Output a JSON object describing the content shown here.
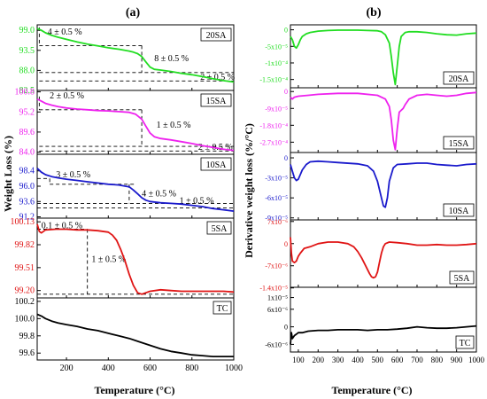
{
  "panels": [
    {
      "id": "a",
      "label": "(a)"
    },
    {
      "id": "b",
      "label": "(b)"
    }
  ],
  "chart_data": [
    {
      "type": "line",
      "panel": "a",
      "title": "(a)",
      "xlabel": "Temperature (°C)",
      "ylabel": "Weight Loss (%)",
      "xlim": [
        60,
        1000
      ],
      "xticks": [
        200,
        400,
        600,
        800,
        1000
      ],
      "subplots": [
        {
          "name": "20SA",
          "color": "#22dd22",
          "ylim": [
            82.5,
            100.5
          ],
          "yticks": [
            99.0,
            93.5,
            88.0,
            82.5
          ],
          "yticklabels": [
            "99.0",
            "93.5",
            "88.0",
            "82.5"
          ],
          "x": [
            60,
            80,
            100,
            130,
            160,
            200,
            250,
            300,
            350,
            400,
            450,
            500,
            520,
            540,
            560,
            580,
            600,
            620,
            650,
            700,
            750,
            800,
            850,
            900,
            950,
            1000
          ],
          "y": [
            99.5,
            99.0,
            98.3,
            97.6,
            97.1,
            96.5,
            95.8,
            95.2,
            94.7,
            94.2,
            93.8,
            93.3,
            93.0,
            92.6,
            91.8,
            90.3,
            88.9,
            88.3,
            88.1,
            87.7,
            87.2,
            86.8,
            86.3,
            85.7,
            85.2,
            84.8
          ],
          "annotations": [
            "4 ± 0.5 %",
            "8 ± 0.5 %",
            "2 ± 0.5 %"
          ]
        },
        {
          "name": "15SA",
          "color": "#ee22ee",
          "ylim": [
            83.4,
            101.2
          ],
          "yticks": [
            100.8,
            95.2,
            89.6,
            84.0
          ],
          "yticklabels": [
            "100.8",
            "95.2",
            "89.6",
            "84.0"
          ],
          "x": [
            60,
            80,
            100,
            130,
            160,
            200,
            250,
            300,
            350,
            400,
            450,
            500,
            530,
            560,
            580,
            600,
            620,
            650,
            700,
            750,
            800,
            850,
            900,
            950,
            1000
          ],
          "y": [
            98.8,
            98.2,
            97.6,
            97.1,
            96.7,
            96.3,
            96.0,
            95.8,
            95.6,
            95.5,
            95.3,
            95.1,
            94.6,
            93.2,
            91.2,
            89.3,
            88.3,
            87.8,
            87.4,
            86.9,
            86.4,
            85.8,
            85.3,
            84.8,
            84.5
          ],
          "annotations": [
            "2 ± 0.5 %",
            "1 ± 0.5 %",
            "2 ± 0.5 %"
          ]
        },
        {
          "name": "10SA",
          "color": "#1a1acc",
          "ylim": [
            91.0,
            101.0
          ],
          "yticks": [
            98.4,
            96.0,
            93.6,
            91.2
          ],
          "yticklabels": [
            "98.4",
            "96.0",
            "93.6",
            "91.2"
          ],
          "x": [
            60,
            80,
            100,
            130,
            160,
            200,
            250,
            300,
            350,
            400,
            450,
            500,
            520,
            540,
            560,
            580,
            600,
            650,
            700,
            750,
            800,
            850,
            900,
            950,
            1000
          ],
          "y": [
            98.8,
            98.2,
            97.8,
            97.5,
            97.3,
            97.1,
            96.9,
            96.7,
            96.5,
            96.3,
            96.2,
            95.9,
            95.4,
            94.8,
            94.2,
            93.8,
            93.6,
            93.4,
            93.3,
            93.2,
            93.0,
            92.8,
            92.5,
            92.3,
            92.1
          ],
          "annotations": [
            "3 ± 0.5 %",
            "4 ± 0.5 %",
            "1 ± 0.5 %"
          ]
        },
        {
          "name": "5SA",
          "color": "#e01515",
          "ylim": [
            99.1,
            100.18
          ],
          "yticks": [
            100.13,
            99.82,
            99.51,
            99.2
          ],
          "yticklabels": [
            "100.13",
            "99.82",
            "99.51",
            "99.20"
          ],
          "x": [
            60,
            70,
            80,
            100,
            150,
            200,
            250,
            300,
            350,
            400,
            420,
            440,
            460,
            480,
            500,
            520,
            540,
            560,
            600,
            650,
            700,
            750,
            800,
            850,
            900,
            950,
            1000
          ],
          "y": [
            100.1,
            100.0,
            99.98,
            100.02,
            100.03,
            100.03,
            100.02,
            100.02,
            100.01,
            99.99,
            99.95,
            99.88,
            99.75,
            99.6,
            99.42,
            99.27,
            99.17,
            99.15,
            99.19,
            99.21,
            99.2,
            99.19,
            99.19,
            99.19,
            99.19,
            99.19,
            99.18
          ],
          "annotations": [
            "0.1 ± 0.5 %",
            "1 ± 0.5 %"
          ]
        },
        {
          "name": "TC",
          "color": "#000000",
          "ylim": [
            99.52,
            100.24
          ],
          "yticks": [
            100.2,
            100.0,
            99.8,
            99.6
          ],
          "yticklabels": [
            "100.2",
            "100.0",
            "99.8",
            "99.6"
          ],
          "x": [
            60,
            80,
            100,
            130,
            160,
            200,
            250,
            300,
            350,
            400,
            450,
            500,
            550,
            600,
            650,
            700,
            750,
            800,
            850,
            900,
            950,
            1000
          ],
          "y": [
            100.05,
            100.03,
            100.0,
            99.97,
            99.95,
            99.93,
            99.91,
            99.88,
            99.86,
            99.83,
            99.8,
            99.77,
            99.73,
            99.69,
            99.65,
            99.62,
            99.6,
            99.58,
            99.57,
            99.56,
            99.56,
            99.56
          ],
          "annotations": []
        }
      ]
    },
    {
      "type": "line",
      "panel": "b",
      "title": "(b)",
      "xlabel": "Temperature (°C)",
      "ylabel": "Derivative weight loss (%/°C)",
      "xlim": [
        60,
        1000
      ],
      "xticks": [
        100,
        200,
        300,
        400,
        500,
        600,
        700,
        800,
        900,
        1000
      ],
      "subplots": [
        {
          "name": "20SA",
          "color": "#22dd22",
          "ylim": [
            -0.000175,
            1.5e-05
          ],
          "yticks": [
            0,
            -5e-05,
            -0.0001,
            -0.00015
          ],
          "yticklabels": [
            "0",
            "-5x10⁻⁵",
            "-1x10⁻⁴",
            "-1.5x10⁻⁴"
          ],
          "x": [
            60,
            70,
            80,
            90,
            100,
            110,
            120,
            140,
            160,
            200,
            250,
            300,
            350,
            400,
            450,
            500,
            520,
            540,
            560,
            570,
            580,
            590,
            600,
            610,
            620,
            640,
            660,
            700,
            750,
            800,
            850,
            900,
            950,
            1000
          ],
          "y": [
            -2e-05,
            -3e-05,
            -5e-05,
            -5.5e-05,
            -4.5e-05,
            -3e-05,
            -2e-05,
            -1.2e-05,
            -8e-06,
            -4e-06,
            -2e-06,
            -1e-06,
            -1e-06,
            -1e-06,
            -2e-06,
            -3e-06,
            -6e-06,
            -1.5e-05,
            -4e-05,
            -8e-05,
            -0.00013,
            -0.000165,
            -0.00011,
            -5e-05,
            -2e-05,
            -8e-06,
            -6e-06,
            -6e-06,
            -8e-06,
            -1.2e-05,
            -1.5e-05,
            -1.6e-05,
            -1.2e-05,
            -1e-05
          ]
        },
        {
          "name": "15SA",
          "color": "#ee22ee",
          "ylim": [
            -0.000325,
            2e-05
          ],
          "yticks": [
            0,
            -9e-05,
            -0.00018,
            -0.00027
          ],
          "yticklabels": [
            "0",
            "-9x10⁻⁵",
            "-1.8x10⁻⁴",
            "-2.7x10⁻⁴"
          ],
          "x": [
            60,
            70,
            80,
            100,
            150,
            200,
            300,
            400,
            500,
            540,
            560,
            570,
            580,
            590,
            600,
            610,
            620,
            630,
            640,
            660,
            700,
            750,
            800,
            850,
            900,
            950,
            1000
          ],
          "y": [
            -3e-05,
            -4e-05,
            -3e-05,
            -2.5e-05,
            -2e-05,
            -1.5e-05,
            -1e-05,
            -1e-05,
            -2e-05,
            -4e-05,
            -8e-05,
            -0.00015,
            -0.00026,
            -0.00031,
            -0.0002,
            -0.00011,
            -0.0001,
            -9e-05,
            -7e-05,
            -4e-05,
            -2e-05,
            -1.5e-05,
            -2e-05,
            -2.5e-05,
            -2e-05,
            -1e-05,
            -5e-06
          ]
        },
        {
          "name": "10SA",
          "color": "#1a1acc",
          "ylim": [
            -9.3e-05,
            8e-06
          ],
          "yticks": [
            0,
            -3e-05,
            -6e-05,
            -9e-05
          ],
          "yticklabels": [
            "0",
            "-3x10⁻⁵",
            "-6x10⁻⁵",
            "-9x10⁻⁵"
          ],
          "x": [
            60,
            70,
            80,
            90,
            100,
            110,
            120,
            140,
            160,
            200,
            250,
            300,
            400,
            450,
            480,
            500,
            520,
            530,
            540,
            550,
            560,
            580,
            600,
            650,
            700,
            750,
            800,
            850,
            900,
            950,
            1000
          ],
          "y": [
            -1e-05,
            -2e-05,
            -3e-05,
            -3.4e-05,
            -3.2e-05,
            -2.5e-05,
            -1.8e-05,
            -1e-05,
            -6e-06,
            -5e-06,
            -6e-06,
            -7e-06,
            -9e-06,
            -1.2e-05,
            -2e-05,
            -3.5e-05,
            -6e-05,
            -7.2e-05,
            -7.4e-05,
            -6e-05,
            -3.5e-05,
            -1.5e-05,
            -1e-05,
            -9e-06,
            -8e-06,
            -8e-06,
            -1e-05,
            -1.1e-05,
            -1.2e-05,
            -1e-05,
            -9e-06
          ]
        },
        {
          "name": "5SA",
          "color": "#e01515",
          "ylim": [
            -1.38e-05,
            7.5e-06
          ],
          "yticks": [
            7e-06,
            0,
            -7e-06,
            -1.4e-05
          ],
          "yticklabels": [
            "7x10⁻⁶",
            "0",
            "-7x10⁻⁶",
            "-1.4x10⁻⁵"
          ],
          "x": [
            60,
            65,
            70,
            80,
            90,
            100,
            110,
            130,
            160,
            200,
            250,
            300,
            350,
            380,
            400,
            420,
            440,
            460,
            470,
            480,
            490,
            500,
            510,
            520,
            530,
            540,
            560,
            600,
            650,
            700,
            750,
            800,
            850,
            900,
            950,
            1000
          ],
          "y": [
            2e-06,
            -3e-06,
            -5.5e-06,
            -6e-06,
            -5.5e-06,
            -4e-06,
            -3e-06,
            -1.5e-06,
            -1e-06,
            0,
            5e-07,
            5e-07,
            0,
            -1e-06,
            -2.5e-06,
            -4.5e-06,
            -7e-06,
            -9.5e-06,
            -1.05e-05,
            -1.08e-05,
            -1.05e-05,
            -9e-06,
            -6e-06,
            -3e-06,
            -1e-06,
            0,
            5e-07,
            3e-07,
            0,
            -5e-07,
            -5e-07,
            -3e-07,
            -5e-07,
            -5e-07,
            -3e-07,
            0
          ]
        },
        {
          "name": "TC",
          "color": "#000000",
          "ylim": [
            -8.6e-06,
            1.35e-05
          ],
          "yticks": [
            1e-05,
            6e-06,
            0,
            -6e-06
          ],
          "yticklabels": [
            "1x10⁻⁵",
            "6x10⁻⁶",
            "0",
            "-6x10⁻⁶"
          ],
          "x": [
            60,
            65,
            70,
            80,
            90,
            100,
            120,
            150,
            200,
            250,
            300,
            350,
            400,
            450,
            500,
            550,
            600,
            650,
            700,
            750,
            800,
            850,
            900,
            950,
            1000
          ],
          "y": [
            -6e-06,
            -2e-06,
            -4e-06,
            -3e-06,
            -2.5e-06,
            -2e-06,
            -2e-06,
            -1.5e-06,
            -1.2e-06,
            -1.2e-06,
            -1e-06,
            -1e-06,
            -1e-06,
            -1.2e-06,
            -1e-06,
            -1e-06,
            -8e-07,
            -5e-07,
            0,
            -3e-07,
            -5e-07,
            -5e-07,
            -3e-07,
            0,
            3e-07
          ]
        }
      ]
    }
  ]
}
